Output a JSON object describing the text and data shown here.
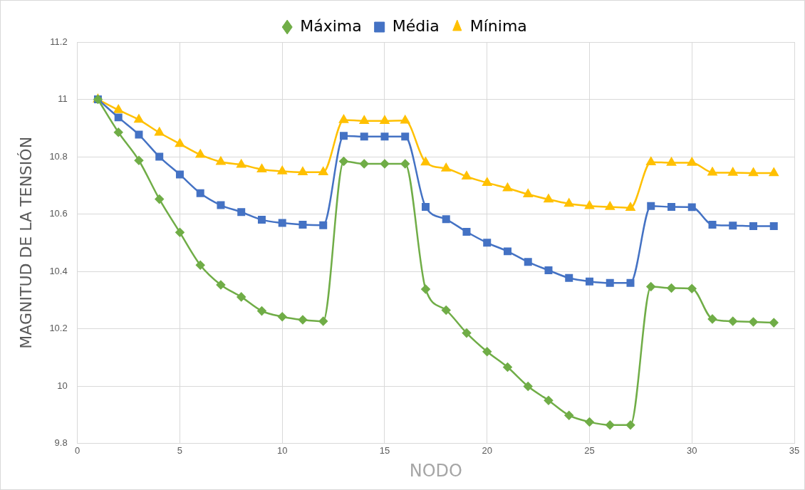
{
  "chart_data": {
    "type": "line",
    "xlabel": "NODO",
    "ylabel": "MAGNITUD DE LA TENSIÓN",
    "x": [
      1,
      2,
      3,
      4,
      5,
      6,
      7,
      8,
      9,
      10,
      11,
      12,
      13,
      14,
      15,
      16,
      17,
      18,
      19,
      20,
      21,
      22,
      23,
      24,
      25,
      26,
      27,
      28,
      29,
      30,
      31,
      32,
      33,
      34
    ],
    "series": [
      {
        "name": "Máxima",
        "color": "#70ad47",
        "marker": "diamond",
        "values": [
          11.0,
          10.885,
          10.787,
          10.652,
          10.536,
          10.422,
          10.353,
          10.311,
          10.262,
          10.242,
          10.231,
          10.226,
          10.784,
          10.775,
          10.775,
          10.775,
          10.338,
          10.265,
          10.185,
          10.12,
          10.066,
          9.999,
          9.95,
          9.898,
          9.875,
          9.864,
          9.864,
          10.347,
          10.342,
          10.34,
          10.234,
          10.226,
          10.224,
          10.221
        ]
      },
      {
        "name": "Média",
        "color": "#4472c4",
        "marker": "square",
        "values": [
          11.0,
          10.937,
          10.877,
          10.8,
          10.738,
          10.673,
          10.631,
          10.607,
          10.58,
          10.569,
          10.563,
          10.561,
          10.873,
          10.87,
          10.87,
          10.87,
          10.625,
          10.582,
          10.538,
          10.5,
          10.47,
          10.433,
          10.404,
          10.377,
          10.365,
          10.36,
          10.36,
          10.628,
          10.625,
          10.624,
          10.563,
          10.56,
          10.558,
          10.558
        ]
      },
      {
        "name": "Mínima",
        "color": "#ffc000",
        "marker": "triangle",
        "values": [
          11.0,
          10.963,
          10.929,
          10.884,
          10.845,
          10.807,
          10.782,
          10.772,
          10.756,
          10.749,
          10.746,
          10.746,
          10.928,
          10.925,
          10.925,
          10.926,
          10.78,
          10.759,
          10.731,
          10.709,
          10.69,
          10.669,
          10.651,
          10.636,
          10.628,
          10.625,
          10.622,
          10.781,
          10.779,
          10.779,
          10.745,
          10.744,
          10.743,
          10.743
        ]
      }
    ],
    "xlim": [
      0,
      35
    ],
    "xticks": [
      0,
      5,
      10,
      15,
      20,
      25,
      30,
      35
    ],
    "ylim": [
      9.8,
      11.2
    ],
    "yticks": [
      9.8,
      10,
      10.2,
      10.4,
      10.6,
      10.8,
      11,
      11.2
    ],
    "grid": true,
    "legend": "top",
    "line_style": "solid"
  }
}
